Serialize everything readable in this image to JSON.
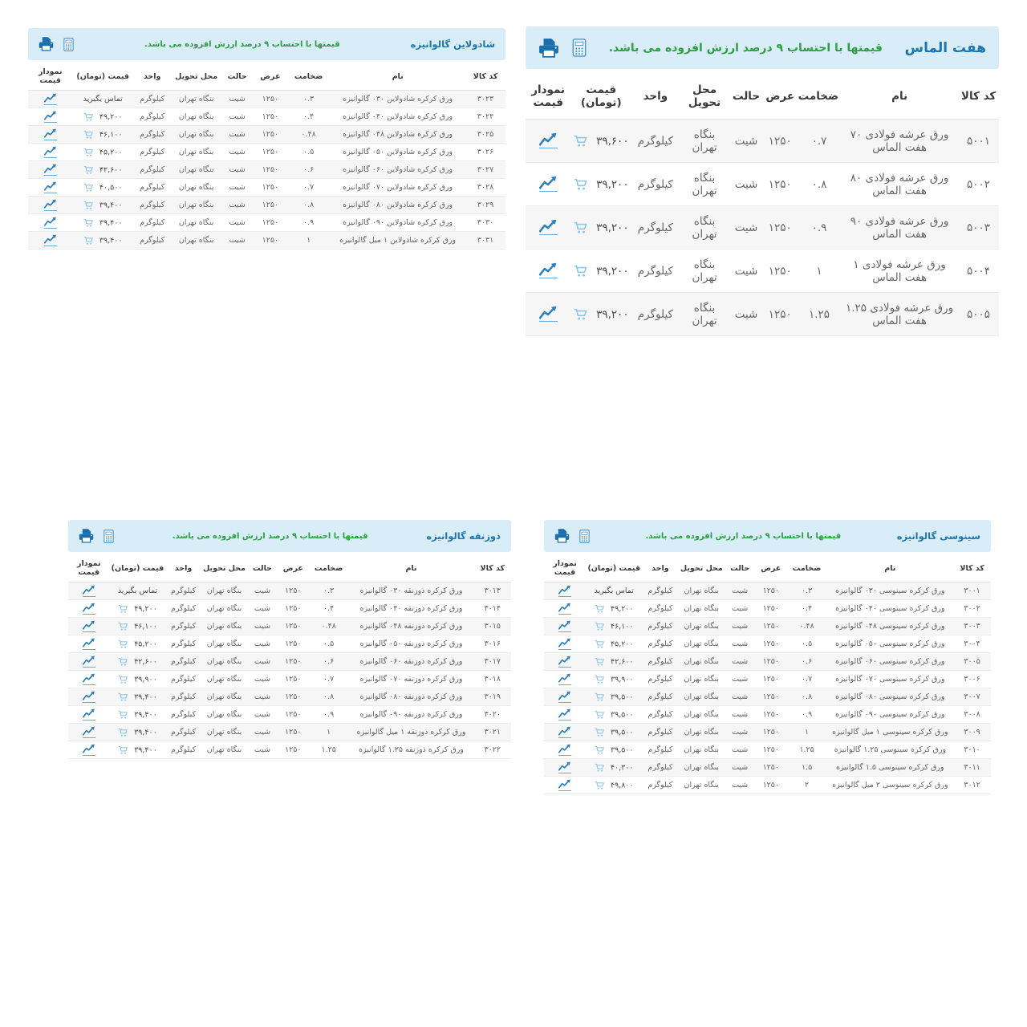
{
  "shared": {
    "vat_note": "قیمتها با احتساب ۹ درصد ارزش افزوده می باشد.",
    "columns": [
      "کد کالا",
      "نام",
      "ضخامت",
      "عرض",
      "حالت",
      "محل تحویل",
      "واحد",
      "قیمت (تومان)",
      "نمودار قیمت"
    ],
    "row_fields": [
      "code",
      "name",
      "thickness",
      "width",
      "state",
      "delivery",
      "unit",
      "price",
      "has_cart_icon"
    ],
    "contact_price_label": "تماس بگیرید",
    "icons": {
      "print": "printer-icon",
      "calculator": "calculator-icon",
      "price_chart": "price-chart-icon",
      "cart": "cart-icon"
    },
    "colors": {
      "bar_bg": "#d8edf7",
      "title_blue": "#1c75ad",
      "note_green": "#2e9e44",
      "link_blue": "#2d7fb8",
      "cart_blue": "#8fc6e9",
      "stripe_gray": "#f6f6f6"
    }
  },
  "tables": [
    {
      "key": "shadoline-galvanized",
      "title": "شادولاین گالوانیزه",
      "rows": [
        [
          "۳۰۲۳",
          "ورق کرکره شادولاین ۰۳۰ گالوانیزه",
          "۰.۳",
          "۱۲۵۰",
          "شیت",
          "بنگاه تهران",
          "کیلوگرم",
          "تماس بگیرید",
          false
        ],
        [
          "۳۰۲۴",
          "ورق کرکره شادولاین ۰۴۰ گالوانیزه",
          "۰.۴",
          "۱۲۵۰",
          "شیت",
          "بنگاه تهران",
          "کیلوگرم",
          "۴۹,۲۰۰",
          true
        ],
        [
          "۳۰۲۵",
          "ورق کرکره شادولاین ۰۴۸ گالوانیزه",
          "۰.۴۸",
          "۱۲۵۰",
          "شیت",
          "بنگاه تهران",
          "کیلوگرم",
          "۴۶,۱۰۰",
          true
        ],
        [
          "۳۰۲۶",
          "ورق کرکره شادولاین ۰۵۰ گالوانیزه",
          "۰.۵",
          "۱۲۵۰",
          "شیت",
          "بنگاه تهران",
          "کیلوگرم",
          "۴۵,۲۰۰",
          true
        ],
        [
          "۳۰۲۷",
          "ورق کرکره شادولاین ۰۶۰ گالوانیزه",
          "۰.۶",
          "۱۲۵۰",
          "شیت",
          "بنگاه تهران",
          "کیلوگرم",
          "۴۲,۶۰۰",
          true
        ],
        [
          "۳۰۲۸",
          "ورق کرکره شادولاین ۰۷۰ گالوانیزه",
          "۰.۷",
          "۱۲۵۰",
          "شیت",
          "بنگاه تهران",
          "کیلوگرم",
          "۴۰,۵۰۰",
          true
        ],
        [
          "۳۰۲۹",
          "ورق کرکره شادولاین ۰۸۰ گالوانیزه",
          "۰.۸",
          "۱۲۵۰",
          "شیت",
          "بنگاه تهران",
          "کیلوگرم",
          "۳۹,۴۰۰",
          true
        ],
        [
          "۳۰۳۰",
          "ورق کرکره شادولاین ۰۹۰ گالوانیزه",
          "۰.۹",
          "۱۲۵۰",
          "شیت",
          "بنگاه تهران",
          "کیلوگرم",
          "۳۹,۴۰۰",
          true
        ],
        [
          "۳۰۳۱",
          "ورق کرکره شادولاین ۱ میل گالوانیزه",
          "۱",
          "۱۲۵۰",
          "شیت",
          "بنگاه تهران",
          "کیلوگرم",
          "۳۹,۴۰۰",
          true
        ]
      ]
    },
    {
      "key": "haft-almas",
      "title": "هفت الماس",
      "rows": [
        [
          "۵۰۰۱",
          "ورق عرشه فولادی ۷۰ هفت الماس",
          "۰.۷",
          "۱۲۵۰",
          "شیت",
          "بنگاه تهران",
          "کیلوگرم",
          "۳۹,۶۰۰",
          true
        ],
        [
          "۵۰۰۲",
          "ورق عرشه فولادی ۸۰ هفت الماس",
          "۰.۸",
          "۱۲۵۰",
          "شیت",
          "بنگاه تهران",
          "کیلوگرم",
          "۳۹,۲۰۰",
          true
        ],
        [
          "۵۰۰۳",
          "ورق عرشه فولادی ۹۰ هفت الماس",
          "۰.۹",
          "۱۲۵۰",
          "شیت",
          "بنگاه تهران",
          "کیلوگرم",
          "۳۹,۲۰۰",
          true
        ],
        [
          "۵۰۰۴",
          "ورق عرشه فولادی ۱ هفت الماس",
          "۱",
          "۱۲۵۰",
          "شیت",
          "بنگاه تهران",
          "کیلوگرم",
          "۳۹,۲۰۰",
          true
        ],
        [
          "۵۰۰۵",
          "ورق عرشه فولادی ۱.۲۵ هفت الماس",
          "۱.۲۵",
          "۱۲۵۰",
          "شیت",
          "بنگاه تهران",
          "کیلوگرم",
          "۳۹,۲۰۰",
          true
        ]
      ]
    },
    {
      "key": "trapezoid-galvanized",
      "title": "ذوزنقه گالوانیزه",
      "rows": [
        [
          "۳۰۱۳",
          "ورق کرکره ذوزنقه ۰۳۰ گالوانیزه",
          "۰.۳",
          "۱۲۵۰",
          "شیت",
          "بنگاه تهران",
          "کیلوگرم",
          "تماس بگیرید",
          false
        ],
        [
          "۳۰۱۴",
          "ورق کرکره ذوزنقه ۰۴۰ گالوانیزه",
          "۰.۴",
          "۱۲۵۰",
          "شیت",
          "بنگاه تهران",
          "کیلوگرم",
          "۴۹,۲۰۰",
          true
        ],
        [
          "۳۰۱۵",
          "ورق کرکره ذوزنقه ۰۴۸ گالوانیزه",
          "۰.۴۸",
          "۱۲۵۰",
          "شیت",
          "بنگاه تهران",
          "کیلوگرم",
          "۴۶,۱۰۰",
          true
        ],
        [
          "۳۰۱۶",
          "ورق کرکره ذوزنقه ۰۵۰ گالوانیزه",
          "۰.۵",
          "۱۲۵۰",
          "شیت",
          "بنگاه تهران",
          "کیلوگرم",
          "۴۵,۲۰۰",
          true
        ],
        [
          "۳۰۱۷",
          "ورق کرکره ذوزنقه ۰۶۰ گالوانیزه",
          "۰.۶",
          "۱۲۵۰",
          "شیت",
          "بنگاه تهران",
          "کیلوگرم",
          "۴۲,۶۰۰",
          true
        ],
        [
          "۳۰۱۸",
          "ورق کرکره ذوزنقه ۰۷۰ گالوانیزه",
          "۰.۷",
          "۱۲۵۰",
          "شیت",
          "بنگاه تهران",
          "کیلوگرم",
          "۳۹,۹۰۰",
          true
        ],
        [
          "۳۰۱۹",
          "ورق کرکره ذوزنقه ۰۸۰ گالوانیزه",
          "۰.۸",
          "۱۲۵۰",
          "شیت",
          "بنگاه تهران",
          "کیلوگرم",
          "۳۹,۴۰۰",
          true
        ],
        [
          "۳۰۲۰",
          "ورق کرکره ذوزنقه ۰۹۰ گالوانیزه",
          "۰.۹",
          "۱۲۵۰",
          "شیت",
          "بنگاه تهران",
          "کیلوگرم",
          "۳۹,۴۰۰",
          true
        ],
        [
          "۳۰۲۱",
          "ورق کرکره ذوزنقه ۱ میل گالوانیزه",
          "۱",
          "۱۲۵۰",
          "شیت",
          "بنگاه تهران",
          "کیلوگرم",
          "۳۹,۴۰۰",
          true
        ],
        [
          "۳۰۲۲",
          "ورق کرکره ذوزنقه ۱.۲۵ گالوانیزه",
          "۱.۲۵",
          "۱۲۵۰",
          "شیت",
          "بنگاه تهران",
          "کیلوگرم",
          "۳۹,۴۰۰",
          true
        ]
      ]
    },
    {
      "key": "sinusoidal-galvanized",
      "title": "سینوسی گالوانیزه",
      "rows": [
        [
          "۳۰۰۱",
          "ورق کرکره سینوسی ۰۳۰ گالوانیزه",
          "۰.۳",
          "۱۲۵۰",
          "شیت",
          "بنگاه تهران",
          "کیلوگرم",
          "تماس بگیرید",
          false
        ],
        [
          "۳۰۰۲",
          "ورق کرکره سینوسی ۰۴۰ گالوانیزه",
          "۰.۴",
          "۱۲۵۰",
          "شیت",
          "بنگاه تهران",
          "کیلوگرم",
          "۴۹,۲۰۰",
          true
        ],
        [
          "۳۰۰۳",
          "ورق کرکره سینوسی ۰۴۸ گالوانیزه",
          "۰.۴۸",
          "۱۲۵۰",
          "شیت",
          "بنگاه تهران",
          "کیلوگرم",
          "۴۶,۱۰۰",
          true
        ],
        [
          "۳۰۰۴",
          "ورق کرکره سینوسی ۰۵۰ گالوانیزه",
          "۰.۵",
          "۱۲۵۰",
          "شیت",
          "بنگاه تهران",
          "کیلوگرم",
          "۴۵,۲۰۰",
          true
        ],
        [
          "۳۰۰۵",
          "ورق کرکره سینوسی ۰۶۰ گالوانیزه",
          "۰.۶",
          "۱۲۵۰",
          "شیت",
          "بنگاه تهران",
          "کیلوگرم",
          "۴۲,۶۰۰",
          true
        ],
        [
          "۳۰۰۶",
          "ورق کرکره سینوسی ۰۷۰ گالوانیزه",
          "۰.۷",
          "۱۲۵۰",
          "شیت",
          "بنگاه تهران",
          "کیلوگرم",
          "۳۹,۹۰۰",
          true
        ],
        [
          "۳۰۰۷",
          "ورق کرکره سینوسی ۰۸۰ گالوانیزه",
          "۰.۸",
          "۱۲۵۰",
          "شیت",
          "بنگاه تهران",
          "کیلوگرم",
          "۳۹,۵۰۰",
          true
        ],
        [
          "۳۰۰۸",
          "ورق کرکره سینوسی ۰۹۰ گالوانیزه",
          "۰.۹",
          "۱۲۵۰",
          "شیت",
          "بنگاه تهران",
          "کیلوگرم",
          "۳۹,۵۰۰",
          true
        ],
        [
          "۳۰۰۹",
          "ورق کرکره سینوسی ۱ میل گالوانیزه",
          "۱",
          "۱۲۵۰",
          "شیت",
          "بنگاه تهران",
          "کیلوگرم",
          "۳۹,۵۰۰",
          true
        ],
        [
          "۳۰۱۰",
          "ورق کرکره سینوسی ۱.۲۵ گالوانیزه",
          "۱.۲۵",
          "۱۲۵۰",
          "شیت",
          "بنگاه تهران",
          "کیلوگرم",
          "۳۹,۵۰۰",
          true
        ],
        [
          "۳۰۱۱",
          "ورق کرکره سینوسی ۱.۵ گالوانیزه",
          "۱.۵",
          "۱۲۵۰",
          "شیت",
          "بنگاه تهران",
          "کیلوگرم",
          "۴۰,۳۰۰",
          true
        ],
        [
          "۳۰۱۲",
          "ورق کرکره سینوسی ۲ میل گالوانیزه",
          "۲",
          "۱۲۵۰",
          "شیت",
          "بنگاه تهران",
          "کیلوگرم",
          "۴۹,۸۰۰",
          true
        ]
      ]
    }
  ]
}
